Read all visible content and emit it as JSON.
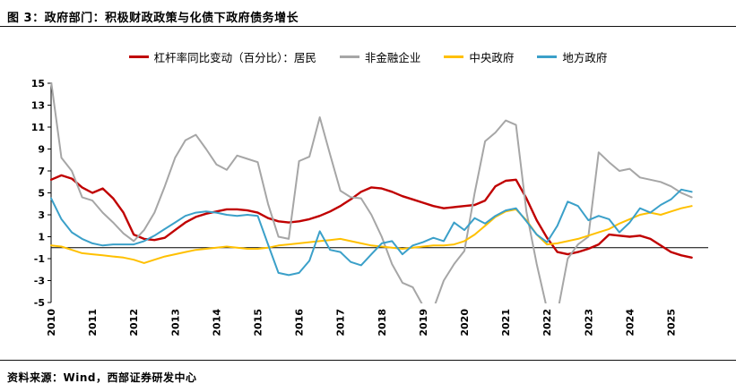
{
  "header": {
    "title": "图 3：政府部门：积极财政政策与化债下政府债务增长"
  },
  "footer": {
    "source": "资料来源：Wind，西部证券研发中心"
  },
  "chart_data": {
    "type": "line",
    "title": "图 3：政府部门：积极财政政策与化债下政府债务增长",
    "xlabel": "",
    "ylabel": "杠杆率同比变动（百分比）",
    "grid": false,
    "legend_position": "top-center",
    "xlim": [
      2010,
      2025.9
    ],
    "ylim": [
      -5,
      15
    ],
    "yticks": [
      15,
      13,
      11,
      9,
      7,
      5,
      3,
      1,
      -1,
      -3,
      -5
    ],
    "x_tick_values": [
      2010,
      2011,
      2012,
      2013,
      2014,
      2015,
      2016,
      2017,
      2018,
      2019,
      2020,
      2021,
      2022,
      2023,
      2024,
      2025
    ],
    "x_tick_labels": [
      "2010",
      "2011",
      "2012",
      "2013",
      "2014",
      "2015",
      "2016",
      "2017",
      "2018",
      "2019",
      "2020",
      "2021",
      "2022",
      "2023",
      "2024",
      "2025"
    ],
    "x_start": 2010,
    "x_step": 0.25,
    "series": [
      {
        "name": "杠杆率同比变动（百分比）：居民",
        "color": "#c00000",
        "values": [
          6.2,
          6.6,
          6.3,
          5.5,
          5.0,
          5.4,
          4.5,
          3.2,
          1.2,
          0.8,
          0.7,
          0.9,
          1.6,
          2.3,
          2.8,
          3.1,
          3.3,
          3.5,
          3.5,
          3.4,
          3.2,
          2.7,
          2.4,
          2.3,
          2.4,
          2.6,
          2.9,
          3.3,
          3.8,
          4.4,
          5.1,
          5.5,
          5.4,
          5.1,
          4.7,
          4.4,
          4.1,
          3.8,
          3.6,
          3.7,
          3.8,
          3.9,
          4.3,
          5.6,
          6.1,
          6.2,
          4.5,
          2.5,
          0.9,
          -0.4,
          -0.6,
          -0.4,
          -0.1,
          0.3,
          1.2,
          1.1,
          1.0,
          1.1,
          0.8,
          0.2,
          -0.4,
          -0.7,
          -0.9
        ]
      },
      {
        "name": "非金融企业",
        "color": "#a6a6a6",
        "values": [
          15.2,
          8.2,
          7.0,
          4.6,
          4.3,
          3.2,
          2.3,
          1.3,
          0.6,
          1.6,
          3.2,
          5.6,
          8.2,
          9.8,
          10.3,
          9.0,
          7.6,
          7.1,
          8.4,
          8.1,
          7.8,
          4.0,
          1.0,
          0.8,
          7.9,
          8.3,
          11.9,
          8.5,
          5.2,
          4.6,
          4.5,
          3.0,
          1.0,
          -1.5,
          -3.2,
          -3.6,
          -5.3,
          -5.6,
          -3.0,
          -1.5,
          -0.3,
          5.0,
          9.7,
          10.5,
          11.6,
          11.2,
          3.3,
          -1.5,
          -5.6,
          -6.0,
          -1.0,
          0.3,
          1.0,
          8.7,
          7.8,
          7.0,
          7.2,
          6.4,
          6.2,
          6.0,
          5.6,
          5.0,
          4.6
        ]
      },
      {
        "name": "中央政府",
        "color": "#ffc000",
        "values": [
          0.2,
          0.1,
          -0.2,
          -0.5,
          -0.6,
          -0.7,
          -0.8,
          -0.9,
          -1.1,
          -1.4,
          -1.1,
          -0.8,
          -0.6,
          -0.4,
          -0.2,
          -0.1,
          0.0,
          0.1,
          0.0,
          -0.1,
          -0.1,
          0.0,
          0.2,
          0.3,
          0.4,
          0.5,
          0.6,
          0.7,
          0.8,
          0.6,
          0.4,
          0.2,
          0.1,
          0.0,
          -0.1,
          0.0,
          0.1,
          0.2,
          0.2,
          0.3,
          0.6,
          1.2,
          2.0,
          2.8,
          3.3,
          3.5,
          2.5,
          1.2,
          0.3,
          0.4,
          0.6,
          0.8,
          1.1,
          1.4,
          1.7,
          2.2,
          2.6,
          3.0,
          3.2,
          3.0,
          3.3,
          3.6,
          3.8
        ]
      },
      {
        "name": "地方政府",
        "color": "#3ba0c9",
        "values": [
          4.5,
          2.6,
          1.4,
          0.8,
          0.4,
          0.2,
          0.3,
          0.3,
          0.3,
          0.6,
          1.1,
          1.7,
          2.3,
          2.9,
          3.2,
          3.3,
          3.2,
          3.0,
          2.9,
          3.0,
          2.9,
          0.3,
          -2.3,
          -2.5,
          -2.3,
          -1.2,
          1.5,
          -0.2,
          -0.4,
          -1.3,
          -1.6,
          -0.6,
          0.4,
          0.6,
          -0.6,
          0.2,
          0.5,
          0.9,
          0.6,
          2.3,
          1.6,
          2.7,
          2.2,
          2.9,
          3.4,
          3.6,
          2.4,
          1.2,
          0.5,
          2.0,
          4.2,
          3.8,
          2.5,
          2.9,
          2.6,
          1.4,
          2.3,
          3.6,
          3.2,
          3.9,
          4.4,
          5.3,
          5.1
        ]
      }
    ]
  }
}
